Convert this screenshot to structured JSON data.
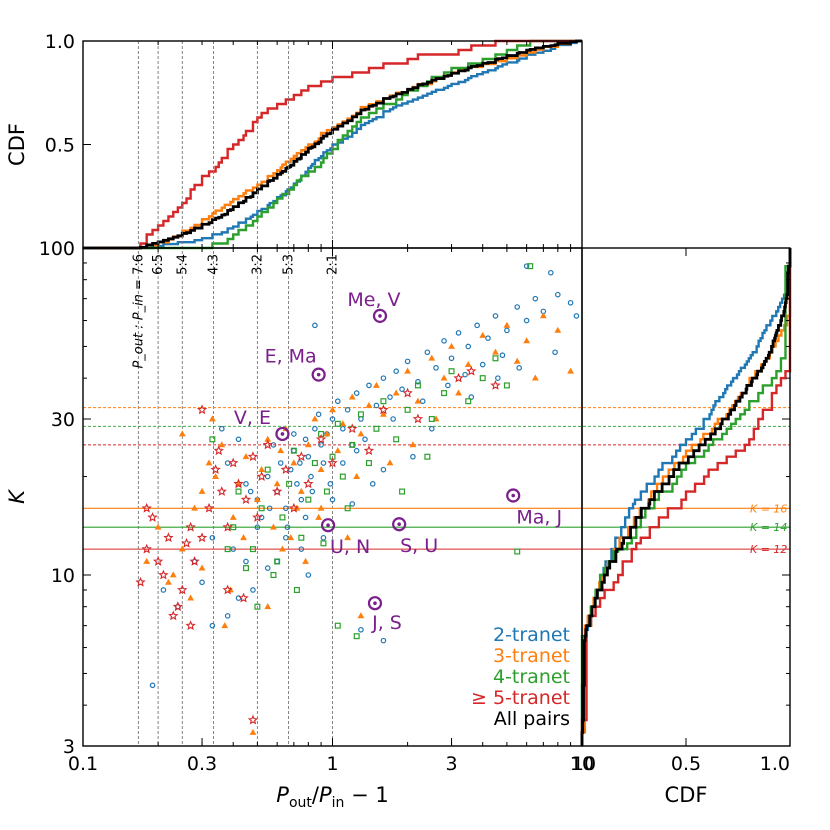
{
  "chart_data": {
    "type": "scatter",
    "xlabel": "P_out/P_in − 1",
    "ylabel": "K",
    "xlim": [
      0.1,
      10
    ],
    "ylim": [
      3,
      100
    ],
    "xscale": "log",
    "yscale": "log",
    "x_tick_labels": [
      "0.1",
      "0.3",
      "1",
      "3",
      "10"
    ],
    "x_tick_values": [
      0.1,
      0.3,
      1,
      3,
      10
    ],
    "y_tick_labels": [
      "3",
      "10",
      "30",
      "100"
    ],
    "y_tick_values": [
      3,
      10,
      30,
      100
    ],
    "top_panel": {
      "ylabel": "CDF",
      "y_tick_labels": [
        "0.5",
        "1.0"
      ],
      "y_tick_values": [
        0.5,
        1.0
      ]
    },
    "right_panel": {
      "xlabel": "CDF",
      "x_tick_labels": [
        "0.5",
        "1.0"
      ],
      "x_tick_values": [
        0.5,
        1.0
      ]
    },
    "corner_label": "10",
    "resonances": [
      {
        "label": "7:6",
        "prefix": "P_out : P_in =",
        "value": 0.1667
      },
      {
        "label": "6:5",
        "value": 0.2
      },
      {
        "label": "5:4",
        "value": 0.25
      },
      {
        "label": "4:3",
        "value": 0.3333
      },
      {
        "label": "3:2",
        "value": 0.5
      },
      {
        "label": "5:3",
        "value": 0.6667
      },
      {
        "label": "2:1",
        "value": 1.0
      }
    ],
    "k_thresholds": [
      {
        "label": "K = 16",
        "value": 16,
        "color": "#ff7f0e"
      },
      {
        "label": "K = 14",
        "value": 14,
        "color": "#2ca02c"
      },
      {
        "label": "K = 12",
        "value": 12,
        "color": "#d62728"
      }
    ],
    "median_lines": [
      {
        "value": 32.5,
        "color": "#ff7f0e"
      },
      {
        "value": 28.5,
        "color": "#2ca02c"
      },
      {
        "value": 25.0,
        "color": "#d62728"
      }
    ],
    "solar_system_pairs": [
      {
        "label": "Me, V",
        "x": 1.55,
        "y": 62
      },
      {
        "label": "E, Ma",
        "x": 0.88,
        "y": 41
      },
      {
        "label": "V, E",
        "x": 0.63,
        "y": 27
      },
      {
        "label": "Ma, J",
        "x": 5.3,
        "y": 17.5
      },
      {
        "label": "U, N",
        "x": 0.96,
        "y": 14.2
      },
      {
        "label": "S, U",
        "x": 1.85,
        "y": 14.3
      },
      {
        "label": "J, S",
        "x": 1.48,
        "y": 8.2
      }
    ],
    "series": [
      {
        "name": "2-tranet",
        "color": "#1f77b4",
        "marker": "circle",
        "points": [
          [
            0.36,
            28
          ],
          [
            0.38,
            22
          ],
          [
            0.42,
            26
          ],
          [
            0.45,
            19
          ],
          [
            0.5,
            17
          ],
          [
            0.52,
            15
          ],
          [
            0.55,
            20
          ],
          [
            0.58,
            25
          ],
          [
            0.6,
            18
          ],
          [
            0.62,
            22
          ],
          [
            0.65,
            16
          ],
          [
            0.68,
            21
          ],
          [
            0.7,
            24
          ],
          [
            0.72,
            19
          ],
          [
            0.75,
            17
          ],
          [
            0.78,
            26
          ],
          [
            0.8,
            23
          ],
          [
            0.82,
            20
          ],
          [
            0.85,
            28
          ],
          [
            0.88,
            31
          ],
          [
            0.9,
            25
          ],
          [
            0.92,
            22
          ],
          [
            0.95,
            27
          ],
          [
            1.0,
            30
          ],
          [
            1.05,
            34
          ],
          [
            1.1,
            28
          ],
          [
            1.15,
            32
          ],
          [
            1.2,
            25
          ],
          [
            1.25,
            36
          ],
          [
            1.3,
            30
          ],
          [
            1.4,
            38
          ],
          [
            1.5,
            33
          ],
          [
            1.6,
            40
          ],
          [
            1.7,
            35
          ],
          [
            1.8,
            42
          ],
          [
            1.9,
            37
          ],
          [
            2.0,
            45
          ],
          [
            2.2,
            39
          ],
          [
            2.4,
            48
          ],
          [
            2.6,
            43
          ],
          [
            2.8,
            52
          ],
          [
            3.0,
            46
          ],
          [
            3.2,
            55
          ],
          [
            3.5,
            50
          ],
          [
            3.8,
            58
          ],
          [
            4.2,
            53
          ],
          [
            4.5,
            62
          ],
          [
            5.0,
            56
          ],
          [
            5.5,
            66
          ],
          [
            6.0,
            60
          ],
          [
            6.5,
            70
          ],
          [
            7.0,
            64
          ],
          [
            8.0,
            72
          ],
          [
            9.0,
            68
          ],
          [
            9.5,
            62
          ],
          [
            7.5,
            84
          ],
          [
            6.0,
            88
          ],
          [
            0.19,
            4.6
          ],
          [
            0.21,
            9
          ],
          [
            0.24,
            8
          ],
          [
            0.28,
            11
          ],
          [
            0.3,
            9.5
          ],
          [
            0.33,
            13
          ],
          [
            0.4,
            12
          ],
          [
            0.45,
            11
          ],
          [
            0.55,
            10.5
          ],
          [
            0.65,
            13
          ],
          [
            0.75,
            12
          ],
          [
            1.3,
            6.8
          ],
          [
            1.6,
            6.3
          ],
          [
            0.85,
            58
          ],
          [
            0.7,
            27
          ],
          [
            0.6,
            11
          ],
          [
            0.5,
            14
          ],
          [
            0.78,
            15
          ],
          [
            1.1,
            22
          ],
          [
            1.35,
            26
          ],
          [
            1.75,
            30
          ],
          [
            2.3,
            34
          ],
          [
            2.9,
            38
          ],
          [
            3.4,
            41
          ],
          [
            4.0,
            44
          ],
          [
            4.8,
            47
          ],
          [
            1.45,
            19
          ],
          [
            1.0,
            17
          ],
          [
            0.92,
            13
          ],
          [
            0.48,
            9
          ],
          [
            0.33,
            7
          ],
          [
            0.38,
            7.5
          ],
          [
            0.42,
            8.5
          ],
          [
            0.8,
            10
          ],
          [
            1.2,
            16.5
          ],
          [
            2.5,
            28
          ],
          [
            3.6,
            35
          ],
          [
            4.6,
            40
          ],
          [
            5.6,
            43
          ],
          [
            7.8,
            48
          ],
          [
            2.1,
            23
          ],
          [
            1.6,
            21
          ],
          [
            1.25,
            24
          ],
          [
            0.98,
            19
          ],
          [
            0.83,
            18
          ],
          [
            0.74,
            22
          ],
          [
            0.66,
            14
          ],
          [
            0.56,
            16
          ],
          [
            0.47,
            18
          ]
        ]
      },
      {
        "name": "3-tranet",
        "color": "#ff7f0e",
        "marker": "triangle",
        "points": [
          [
            0.18,
            11
          ],
          [
            0.2,
            14
          ],
          [
            0.22,
            9.5
          ],
          [
            0.25,
            12
          ],
          [
            0.28,
            16
          ],
          [
            0.3,
            18
          ],
          [
            0.32,
            22
          ],
          [
            0.34,
            20
          ],
          [
            0.36,
            25
          ],
          [
            0.4,
            15
          ],
          [
            0.42,
            19
          ],
          [
            0.45,
            23
          ],
          [
            0.5,
            17
          ],
          [
            0.52,
            21
          ],
          [
            0.55,
            26
          ],
          [
            0.58,
            14
          ],
          [
            0.6,
            19
          ],
          [
            0.62,
            24
          ],
          [
            0.65,
            28
          ],
          [
            0.7,
            22
          ],
          [
            0.75,
            18
          ],
          [
            0.8,
            25
          ],
          [
            0.85,
            30
          ],
          [
            0.9,
            21
          ],
          [
            0.95,
            27
          ],
          [
            1.0,
            32
          ],
          [
            1.05,
            24
          ],
          [
            1.1,
            29
          ],
          [
            1.2,
            35
          ],
          [
            1.3,
            27
          ],
          [
            1.4,
            33
          ],
          [
            1.5,
            38
          ],
          [
            1.6,
            31
          ],
          [
            1.8,
            36
          ],
          [
            2.0,
            42
          ],
          [
            2.2,
            34
          ],
          [
            2.5,
            46
          ],
          [
            2.8,
            40
          ],
          [
            3.0,
            50
          ],
          [
            3.5,
            44
          ],
          [
            4.0,
            54
          ],
          [
            4.5,
            48
          ],
          [
            5.0,
            58
          ],
          [
            6.0,
            52
          ],
          [
            7.0,
            62
          ],
          [
            8.0,
            56
          ],
          [
            0.48,
            3.3
          ],
          [
            0.37,
            7
          ],
          [
            0.27,
            8.5
          ],
          [
            0.23,
            10
          ],
          [
            0.55,
            8
          ],
          [
            0.78,
            11
          ],
          [
            1.3,
            7.5
          ],
          [
            1.15,
            13
          ],
          [
            0.9,
            16
          ],
          [
            0.68,
            13
          ],
          [
            0.33,
            30
          ],
          [
            0.25,
            27
          ],
          [
            2.6,
            30
          ],
          [
            3.2,
            36
          ],
          [
            2.1,
            25
          ],
          [
            1.7,
            22
          ],
          [
            1.25,
            20
          ],
          [
            0.88,
            15
          ],
          [
            0.72,
            16
          ],
          [
            0.63,
            12
          ],
          [
            0.44,
            13
          ],
          [
            0.39,
            9
          ],
          [
            0.3,
            10.5
          ],
          [
            5.5,
            45
          ],
          [
            6.5,
            40
          ],
          [
            9.0,
            42
          ]
        ]
      },
      {
        "name": "4-tranet",
        "color": "#2ca02c",
        "marker": "square",
        "points": [
          [
            0.33,
            26
          ],
          [
            0.4,
            14
          ],
          [
            0.42,
            18
          ],
          [
            0.48,
            12
          ],
          [
            0.52,
            16
          ],
          [
            0.55,
            21
          ],
          [
            0.6,
            11
          ],
          [
            0.63,
            15
          ],
          [
            0.67,
            19
          ],
          [
            0.7,
            24
          ],
          [
            0.75,
            13
          ],
          [
            0.8,
            17
          ],
          [
            0.85,
            22
          ],
          [
            0.9,
            27
          ],
          [
            0.95,
            18
          ],
          [
            1.0,
            23
          ],
          [
            1.05,
            29
          ],
          [
            1.1,
            20
          ],
          [
            1.2,
            25
          ],
          [
            1.3,
            31
          ],
          [
            1.4,
            22
          ],
          [
            1.5,
            28
          ],
          [
            1.6,
            34
          ],
          [
            1.8,
            26
          ],
          [
            2.0,
            32
          ],
          [
            2.2,
            38
          ],
          [
            2.5,
            30
          ],
          [
            2.8,
            36
          ],
          [
            3.0,
            42
          ],
          [
            3.5,
            34
          ],
          [
            4.0,
            40
          ],
          [
            4.5,
            46
          ],
          [
            5.0,
            38
          ],
          [
            5.5,
            11.8
          ],
          [
            6.2,
            88
          ],
          [
            1.25,
            6.5
          ],
          [
            1.05,
            7.0
          ],
          [
            0.72,
            9
          ],
          [
            0.58,
            10
          ],
          [
            0.5,
            8
          ],
          [
            0.45,
            10.5
          ],
          [
            0.38,
            12
          ],
          [
            1.9,
            18
          ],
          [
            2.4,
            23
          ],
          [
            1.15,
            16
          ],
          [
            0.92,
            12.5
          ]
        ]
      },
      {
        "name": "≥5-tranet",
        "color": "#d62728",
        "marker": "star",
        "points": [
          [
            0.17,
            9.5
          ],
          [
            0.18,
            12
          ],
          [
            0.18,
            16
          ],
          [
            0.19,
            15
          ],
          [
            0.2,
            11
          ],
          [
            0.21,
            10
          ],
          [
            0.22,
            13
          ],
          [
            0.23,
            7.5
          ],
          [
            0.24,
            8
          ],
          [
            0.25,
            9
          ],
          [
            0.26,
            12.5
          ],
          [
            0.27,
            14
          ],
          [
            0.28,
            11
          ],
          [
            0.3,
            13
          ],
          [
            0.32,
            16
          ],
          [
            0.34,
            21
          ],
          [
            0.35,
            24
          ],
          [
            0.36,
            18
          ],
          [
            0.38,
            14
          ],
          [
            0.4,
            22
          ],
          [
            0.42,
            19
          ],
          [
            0.45,
            17
          ],
          [
            0.48,
            23
          ],
          [
            0.5,
            15
          ],
          [
            0.52,
            20
          ],
          [
            0.55,
            25
          ],
          [
            0.6,
            18
          ],
          [
            0.65,
            21
          ],
          [
            0.7,
            16
          ],
          [
            0.75,
            23
          ],
          [
            0.8,
            19
          ],
          [
            0.9,
            26
          ],
          [
            1.0,
            22
          ],
          [
            1.2,
            28
          ],
          [
            1.4,
            24
          ],
          [
            1.6,
            32
          ],
          [
            2.0,
            36
          ],
          [
            2.2,
            30
          ],
          [
            3.2,
            40
          ],
          [
            3.6,
            42
          ],
          [
            4.5,
            38
          ],
          [
            0.48,
            3.6
          ],
          [
            0.3,
            32
          ],
          [
            0.38,
            9
          ],
          [
            0.44,
            8.5
          ],
          [
            0.27,
            7
          ]
        ]
      }
    ],
    "legend": [
      {
        "label": "2-tranet",
        "color": "#1f77b4"
      },
      {
        "label": "3-tranet",
        "color": "#ff7f0e"
      },
      {
        "label": "4-tranet",
        "color": "#2ca02c"
      },
      {
        "label": "≥ 5-tranet",
        "color": "#d62728"
      },
      {
        "label": "All pairs",
        "color": "#000000"
      }
    ]
  }
}
